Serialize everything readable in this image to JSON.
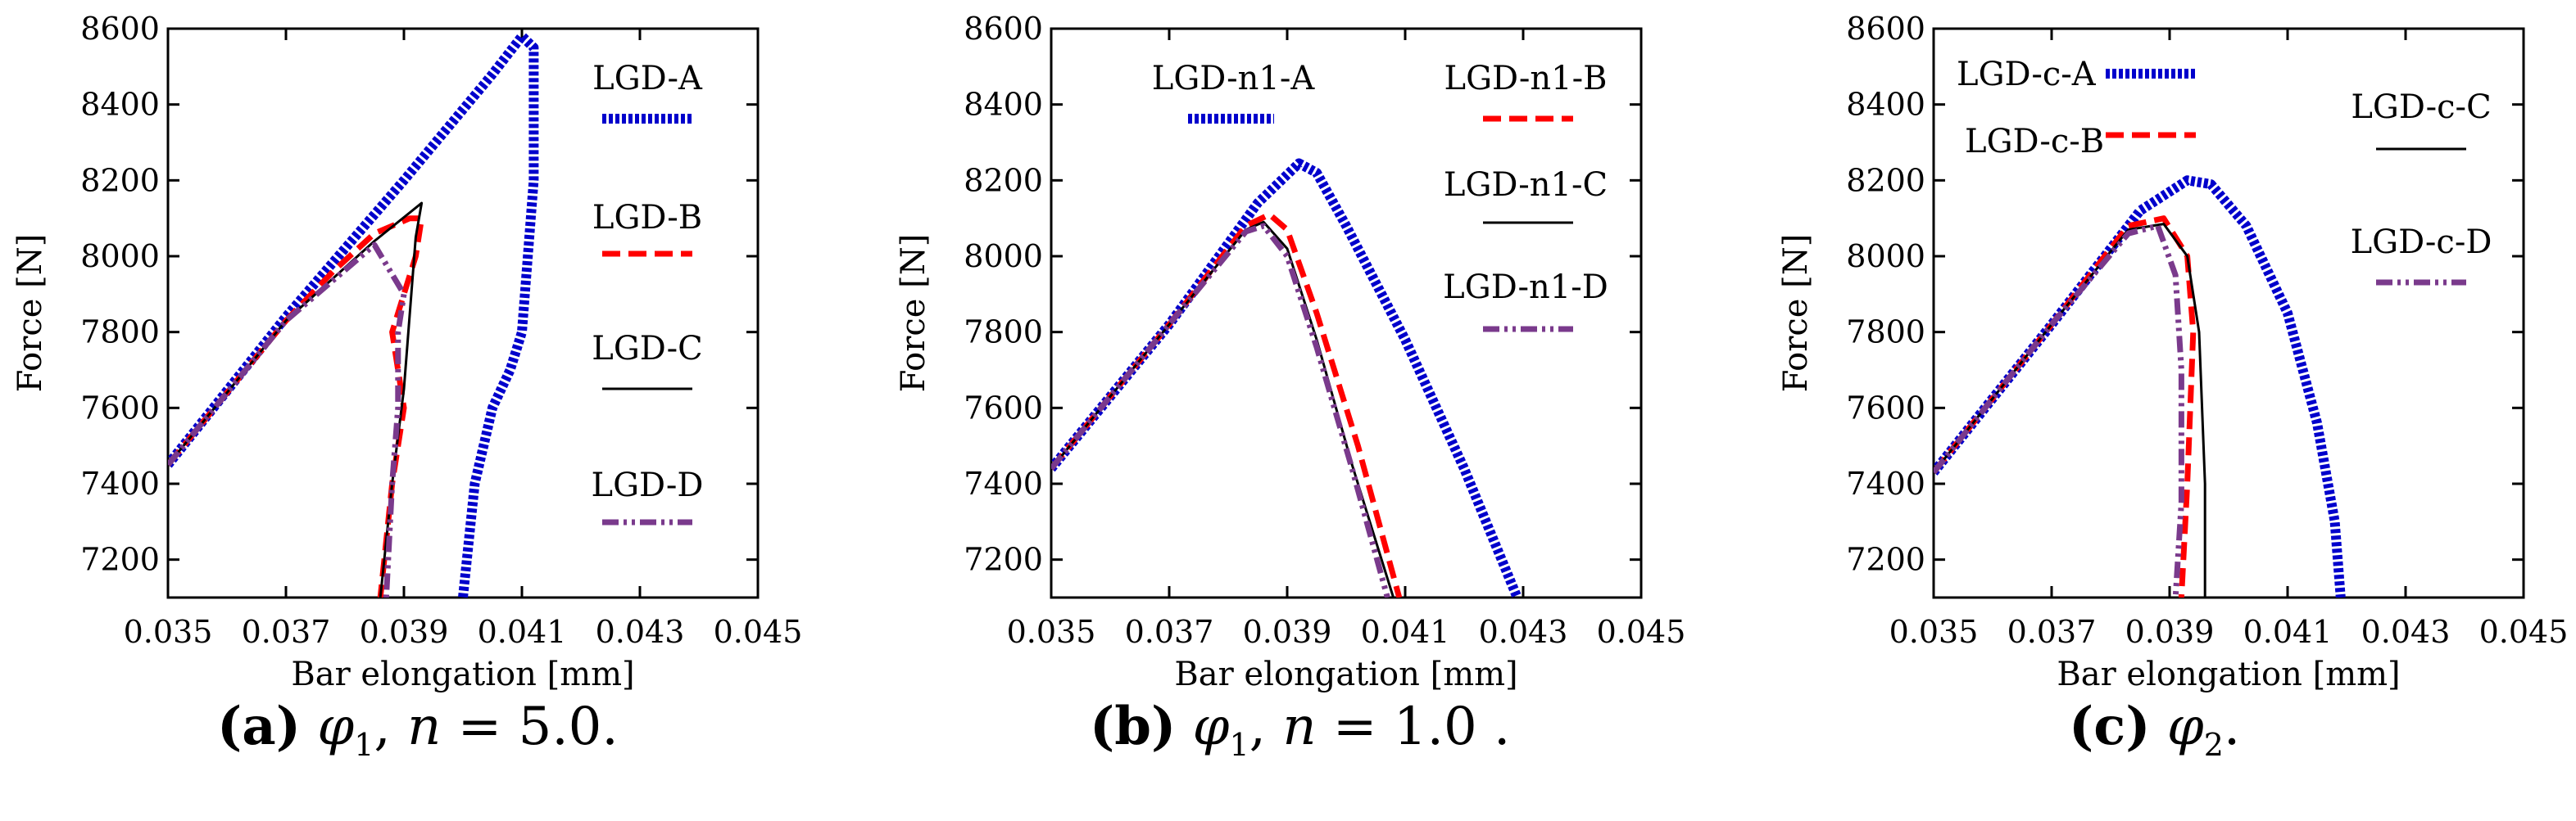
{
  "chart_data": [
    {
      "type": "line",
      "panel": "a",
      "xlabel": "Bar elongation [mm]",
      "ylabel": "Force [N]",
      "xlim": [
        0.035,
        0.045
      ],
      "ylim": [
        7100,
        8600
      ],
      "xticks": [
        "0.035",
        "0.037",
        "0.039",
        "0.041",
        "0.043",
        "0.045"
      ],
      "yticks": [
        "7200",
        "7400",
        "7600",
        "7800",
        "8000",
        "8200",
        "8400",
        "8600"
      ],
      "caption": {
        "tag": "(a)",
        "sym": "φ",
        "sub": "1",
        "rest": ", ",
        "n": "n",
        "eq": " = 5.0."
      },
      "series": [
        {
          "name": "LGD-A",
          "style": "dotted",
          "color": "#0000cc",
          "x": [
            0.035,
            0.037,
            0.039,
            0.0405,
            0.041,
            0.0412,
            0.0412,
            0.0411,
            0.041,
            0.0408,
            0.0405,
            0.0402,
            0.04
          ],
          "y": [
            7450,
            7840,
            8200,
            8480,
            8580,
            8550,
            8200,
            8000,
            7800,
            7700,
            7600,
            7400,
            7100
          ]
        },
        {
          "name": "LGD-B",
          "style": "dashed",
          "color": "#ff0000",
          "x": [
            0.035,
            0.037,
            0.0378,
            0.0385,
            0.0391,
            0.0393,
            0.0392,
            0.0388,
            0.039,
            0.0388,
            0.0386
          ],
          "y": [
            7450,
            7830,
            7960,
            8060,
            8100,
            8100,
            8000,
            7800,
            7600,
            7400,
            7100
          ]
        },
        {
          "name": "LGD-C",
          "style": "solid",
          "color": "#000000",
          "x": [
            0.035,
            0.037,
            0.0385,
            0.0393,
            0.0392,
            0.0391,
            0.039,
            0.0388,
            0.0386
          ],
          "y": [
            7450,
            7830,
            8040,
            8140,
            8050,
            7850,
            7650,
            7400,
            7100
          ]
        },
        {
          "name": "LGD-D",
          "style": "dashdot",
          "color": "#7a3a8c",
          "x": [
            0.035,
            0.037,
            0.0385,
            0.039,
            0.0389,
            0.0389,
            0.0388,
            0.0387
          ],
          "y": [
            7450,
            7830,
            8030,
            7900,
            7800,
            7600,
            7400,
            7100
          ]
        }
      ]
    },
    {
      "type": "line",
      "panel": "b",
      "xlabel": "Bar elongation [mm]",
      "ylabel": "Force [N]",
      "xlim": [
        0.035,
        0.045
      ],
      "ylim": [
        7100,
        8600
      ],
      "xticks": [
        "0.035",
        "0.037",
        "0.039",
        "0.041",
        "0.043",
        "0.045"
      ],
      "yticks": [
        "7200",
        "7400",
        "7600",
        "7800",
        "8000",
        "8200",
        "8400",
        "8600"
      ],
      "caption": {
        "tag": "(b)",
        "sym": "φ",
        "sub": "1",
        "rest": ", ",
        "n": "n",
        "eq": " = 1.0 ."
      },
      "series": [
        {
          "name": "LGD-n1-A",
          "style": "dotted",
          "color": "#0000cc",
          "x": [
            0.035,
            0.037,
            0.0385,
            0.0392,
            0.0395,
            0.04,
            0.041,
            0.042,
            0.0429
          ],
          "y": [
            7440,
            7820,
            8140,
            8245,
            8220,
            8080,
            7780,
            7440,
            7100
          ]
        },
        {
          "name": "LGD-n1-B",
          "style": "dashed",
          "color": "#ff0000",
          "x": [
            0.035,
            0.037,
            0.0383,
            0.0387,
            0.039,
            0.0395,
            0.0402,
            0.0409
          ],
          "y": [
            7440,
            7820,
            8080,
            8110,
            8070,
            7850,
            7500,
            7100
          ]
        },
        {
          "name": "LGD-n1-C",
          "style": "solid",
          "color": "#000000",
          "x": [
            0.035,
            0.037,
            0.0383,
            0.0386,
            0.039,
            0.0395,
            0.0401,
            0.0408
          ],
          "y": [
            7440,
            7820,
            8070,
            8090,
            8020,
            7780,
            7450,
            7100
          ]
        },
        {
          "name": "LGD-n1-D",
          "style": "dashdot",
          "color": "#7a3a8c",
          "x": [
            0.035,
            0.037,
            0.0383,
            0.0386,
            0.039,
            0.0395,
            0.0401,
            0.0407
          ],
          "y": [
            7440,
            7820,
            8065,
            8080,
            8000,
            7760,
            7440,
            7100
          ]
        }
      ]
    },
    {
      "type": "line",
      "panel": "c",
      "xlabel": "Bar elongation [mm]",
      "ylabel": "Force [N]",
      "xlim": [
        0.035,
        0.045
      ],
      "ylim": [
        7100,
        8600
      ],
      "xticks": [
        "0.035",
        "0.037",
        "0.039",
        "0.041",
        "0.043",
        "0.045"
      ],
      "yticks": [
        "7200",
        "7400",
        "7600",
        "7800",
        "8000",
        "8200",
        "8400",
        "8600"
      ],
      "caption": {
        "tag": "(c)",
        "sym": "φ",
        "sub": "2",
        "rest": ".",
        "n": "",
        "eq": ""
      },
      "series": [
        {
          "name": "LGD-c-A",
          "style": "dotted",
          "color": "#0000cc",
          "x": [
            0.035,
            0.037,
            0.0385,
            0.0393,
            0.0397,
            0.0403,
            0.041,
            0.0415,
            0.0418,
            0.0419
          ],
          "y": [
            7430,
            7820,
            8120,
            8200,
            8190,
            8080,
            7850,
            7560,
            7300,
            7100
          ]
        },
        {
          "name": "LGD-c-B",
          "style": "dashed",
          "color": "#ff0000",
          "x": [
            0.035,
            0.037,
            0.0383,
            0.0389,
            0.0393,
            0.0394,
            0.0393,
            0.0392
          ],
          "y": [
            7430,
            7820,
            8080,
            8100,
            8000,
            7800,
            7400,
            7100
          ]
        },
        {
          "name": "LGD-c-C",
          "style": "solid",
          "color": "#000000",
          "x": [
            0.035,
            0.037,
            0.0383,
            0.0389,
            0.0393,
            0.0395,
            0.0396,
            0.0396
          ],
          "y": [
            7430,
            7820,
            8070,
            8085,
            8000,
            7800,
            7400,
            7100
          ]
        },
        {
          "name": "LGD-c-D",
          "style": "dashdot",
          "color": "#7a3a8c",
          "x": [
            0.035,
            0.037,
            0.0383,
            0.0388,
            0.0391,
            0.0392,
            0.0392,
            0.0391
          ],
          "y": [
            7430,
            7820,
            8060,
            8080,
            7950,
            7700,
            7350,
            7100
          ]
        }
      ]
    }
  ]
}
